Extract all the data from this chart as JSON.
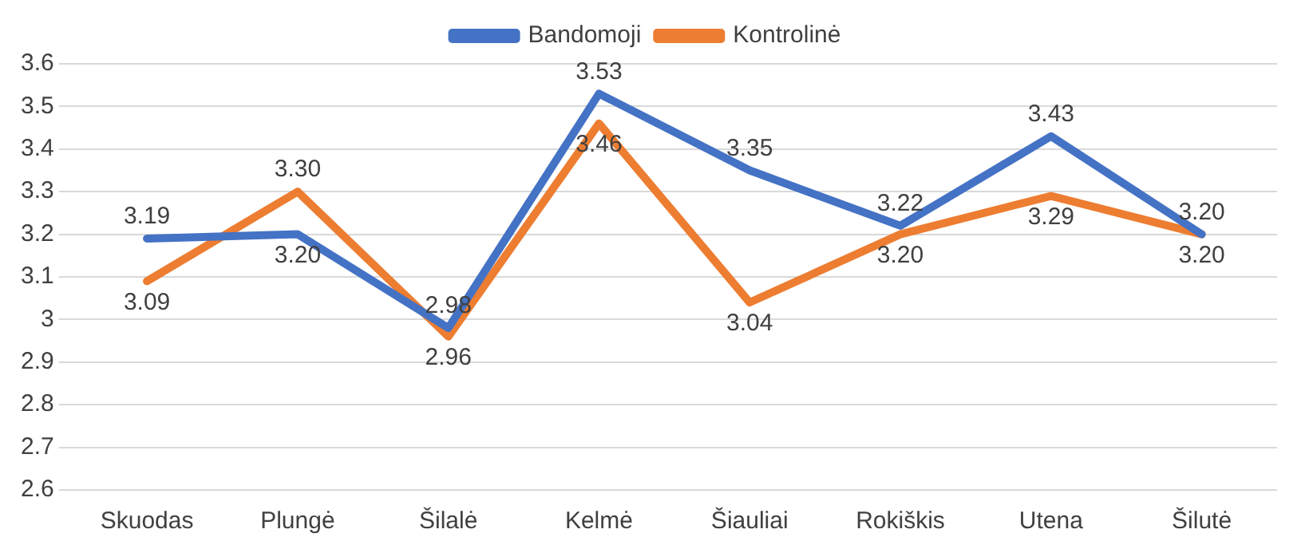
{
  "chart_data": {
    "type": "line",
    "categories": [
      "Skuodas",
      "Plungė",
      "Šilalė",
      "Kelmė",
      "Šiauliai",
      "Rokiškis",
      "Utena",
      "Šilutė"
    ],
    "series": [
      {
        "name": "Bandomoji",
        "color": "#4472c4",
        "values": [
          3.19,
          3.2,
          2.98,
          3.53,
          3.35,
          3.22,
          3.43,
          3.2
        ],
        "value_labels": [
          "3.19",
          "3.20",
          "2.98",
          "3.53",
          "3.35",
          "3.22",
          "3.43",
          "3.20"
        ]
      },
      {
        "name": "Kontrolinė",
        "color": "#ed7d31",
        "values": [
          3.09,
          3.3,
          2.96,
          3.46,
          3.04,
          3.2,
          3.29,
          3.2
        ],
        "value_labels": [
          "3.09",
          "3.30",
          "2.96",
          "3.46",
          "3.04",
          "3.20",
          "3.29",
          "3.20"
        ]
      }
    ],
    "ylim": [
      2.6,
      3.6
    ],
    "yticks": [
      2.6,
      2.7,
      2.8,
      2.9,
      3,
      3.1,
      3.2,
      3.3,
      3.4,
      3.5,
      3.6
    ],
    "grid": "y",
    "legend": "top",
    "marker": "none",
    "line_style": "solid"
  }
}
